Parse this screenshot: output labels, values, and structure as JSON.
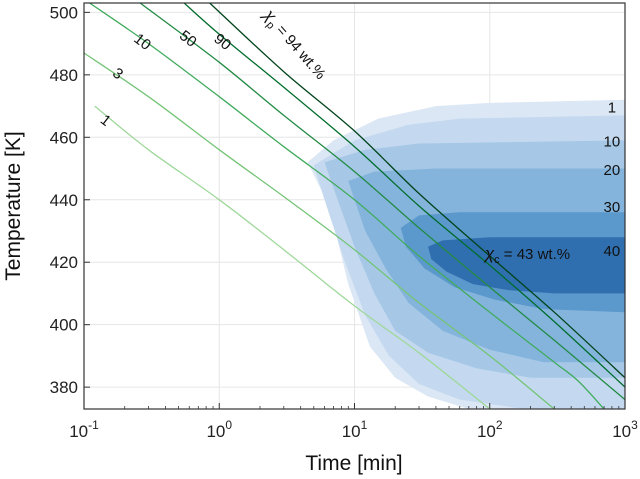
{
  "chart_data": {
    "type": "line",
    "title": "",
    "xlabel": "Time [min]",
    "ylabel": "Temperature [K]",
    "xscale": "log",
    "xlim": [
      0.1,
      1000
    ],
    "ylim": [
      373,
      503
    ],
    "grid": true,
    "x_tick_labels": [
      {
        "value": 0.1,
        "base": "10",
        "exp": "-1"
      },
      {
        "value": 1,
        "base": "10",
        "exp": "0"
      },
      {
        "value": 10,
        "base": "10",
        "exp": "1"
      },
      {
        "value": 100,
        "base": "10",
        "exp": "2"
      },
      {
        "value": 1000,
        "base": "10",
        "exp": "3"
      }
    ],
    "y_ticks": [
      380,
      400,
      420,
      440,
      460,
      480,
      500
    ],
    "y_tick_labels": [
      "380",
      "400",
      "420",
      "440",
      "460",
      "480",
      "500"
    ],
    "crystallinity_curves": [
      {
        "label": "1",
        "color": "#9fd89a",
        "points": [
          [
            0.12,
            470
          ],
          [
            0.3,
            456
          ],
          [
            1,
            440
          ],
          [
            3,
            424
          ],
          [
            10,
            406
          ],
          [
            30,
            391
          ],
          [
            100,
            373
          ]
        ],
        "label_at": [
          0.13,
          465
        ]
      },
      {
        "label": "3",
        "color": "#74c476",
        "points": [
          [
            0.1,
            487
          ],
          [
            0.3,
            473
          ],
          [
            1,
            456
          ],
          [
            3,
            441
          ],
          [
            10,
            424
          ],
          [
            30,
            407
          ],
          [
            100,
            390
          ],
          [
            300,
            373
          ]
        ],
        "label_at": [
          0.16,
          480
        ]
      },
      {
        "label": "10",
        "color": "#41ab5d",
        "points": [
          [
            0.11,
            503
          ],
          [
            0.3,
            490
          ],
          [
            1,
            473
          ],
          [
            3,
            457
          ],
          [
            10,
            440
          ],
          [
            30,
            422
          ],
          [
            100,
            404
          ],
          [
            300,
            388
          ],
          [
            450,
            382
          ],
          [
            700,
            373
          ]
        ],
        "label_at": [
          0.23,
          491
        ]
      },
      {
        "label": "50",
        "color": "#238b45",
        "points": [
          [
            0.26,
            503
          ],
          [
            1,
            484
          ],
          [
            3,
            467
          ],
          [
            10,
            449
          ],
          [
            30,
            431
          ],
          [
            100,
            412
          ],
          [
            300,
            395
          ],
          [
            1000,
            376
          ]
        ],
        "label_at": [
          0.5,
          492
        ]
      },
      {
        "label": "90",
        "color": "#006d2c",
        "points": [
          [
            0.55,
            503
          ],
          [
            1,
            493
          ],
          [
            3,
            476
          ],
          [
            10,
            457
          ],
          [
            30,
            438
          ],
          [
            100,
            419
          ],
          [
            300,
            401
          ],
          [
            1000,
            380
          ]
        ],
        "label_at": [
          0.9,
          491
        ]
      },
      {
        "label": "",
        "color": "#00441b",
        "points": [
          [
            0.85,
            503
          ],
          [
            3,
            481
          ],
          [
            10,
            462
          ],
          [
            30,
            442
          ],
          [
            100,
            422
          ],
          [
            300,
            404
          ],
          [
            1000,
            383
          ]
        ]
      }
    ],
    "chi_p_label": {
      "symbol": "χ",
      "sub": "p",
      "text": " = 94 wt.%",
      "at": [
        2.1,
        499
      ],
      "angle": 49
    },
    "contours": [
      {
        "label": "1",
        "color": "#dbe7f5",
        "label_at": [
          800,
          468
        ],
        "boundary": [
          [
            4.5,
            452
          ],
          [
            7,
            459
          ],
          [
            15,
            466
          ],
          [
            40,
            470
          ],
          [
            100,
            471
          ],
          [
            1000,
            472
          ],
          [
            1000,
            373
          ],
          [
            70,
            373
          ],
          [
            35,
            377
          ],
          [
            20,
            383
          ],
          [
            13,
            393
          ],
          [
            9,
            413
          ],
          [
            6.5,
            438
          ]
        ]
      },
      {
        "label": "10",
        "color": "#c4d9ef",
        "label_at": [
          800,
          457
        ],
        "boundary": [
          [
            5,
            451
          ],
          [
            10,
            459
          ],
          [
            25,
            464
          ],
          [
            60,
            466
          ],
          [
            1000,
            467
          ],
          [
            1000,
            373
          ],
          [
            180,
            373
          ],
          [
            60,
            376
          ],
          [
            30,
            381
          ],
          [
            18,
            390
          ],
          [
            12,
            403
          ],
          [
            8.5,
            420
          ],
          [
            6,
            440
          ]
        ]
      },
      {
        "label": "20",
        "color": "#a6c8e6",
        "label_at": [
          800,
          448
        ],
        "boundary": [
          [
            6,
            452
          ],
          [
            12,
            456
          ],
          [
            30,
            458
          ],
          [
            1000,
            459
          ],
          [
            1000,
            383
          ],
          [
            200,
            383
          ],
          [
            80,
            386
          ],
          [
            35,
            391
          ],
          [
            20,
            398
          ],
          [
            14,
            410
          ],
          [
            10,
            425
          ],
          [
            7.5,
            440
          ]
        ]
      },
      {
        "label": "30",
        "color": "#84b4dc",
        "label_at": [
          800,
          436
        ],
        "boundary": [
          [
            9,
            446
          ],
          [
            14,
            449
          ],
          [
            40,
            450
          ],
          [
            1000,
            450
          ],
          [
            1000,
            388
          ],
          [
            250,
            388
          ],
          [
            100,
            392
          ],
          [
            45,
            398
          ],
          [
            25,
            407
          ],
          [
            17,
            418
          ],
          [
            12,
            430
          ],
          [
            10,
            440
          ]
        ]
      },
      {
        "label": "40",
        "color": "#5b98cb",
        "label_at": [
          800,
          422
        ],
        "boundary": [
          [
            22,
            431
          ],
          [
            30,
            435
          ],
          [
            60,
            436
          ],
          [
            1000,
            436
          ],
          [
            1000,
            404
          ],
          [
            250,
            405
          ],
          [
            110,
            408
          ],
          [
            55,
            412
          ],
          [
            33,
            418
          ],
          [
            24,
            425
          ]
        ]
      },
      {
        "label": "",
        "color": "#2f6faf",
        "boundary": [
          [
            35,
            425
          ],
          [
            45,
            427
          ],
          [
            100,
            428
          ],
          [
            1000,
            428
          ],
          [
            1000,
            410
          ],
          [
            300,
            410
          ],
          [
            140,
            411
          ],
          [
            75,
            413
          ],
          [
            48,
            417
          ],
          [
            37,
            421
          ]
        ]
      }
    ],
    "chi_c_label": {
      "symbol": "χ",
      "sub": "c",
      "text": " = 43 wt.%",
      "at": [
        92,
        421
      ]
    }
  }
}
